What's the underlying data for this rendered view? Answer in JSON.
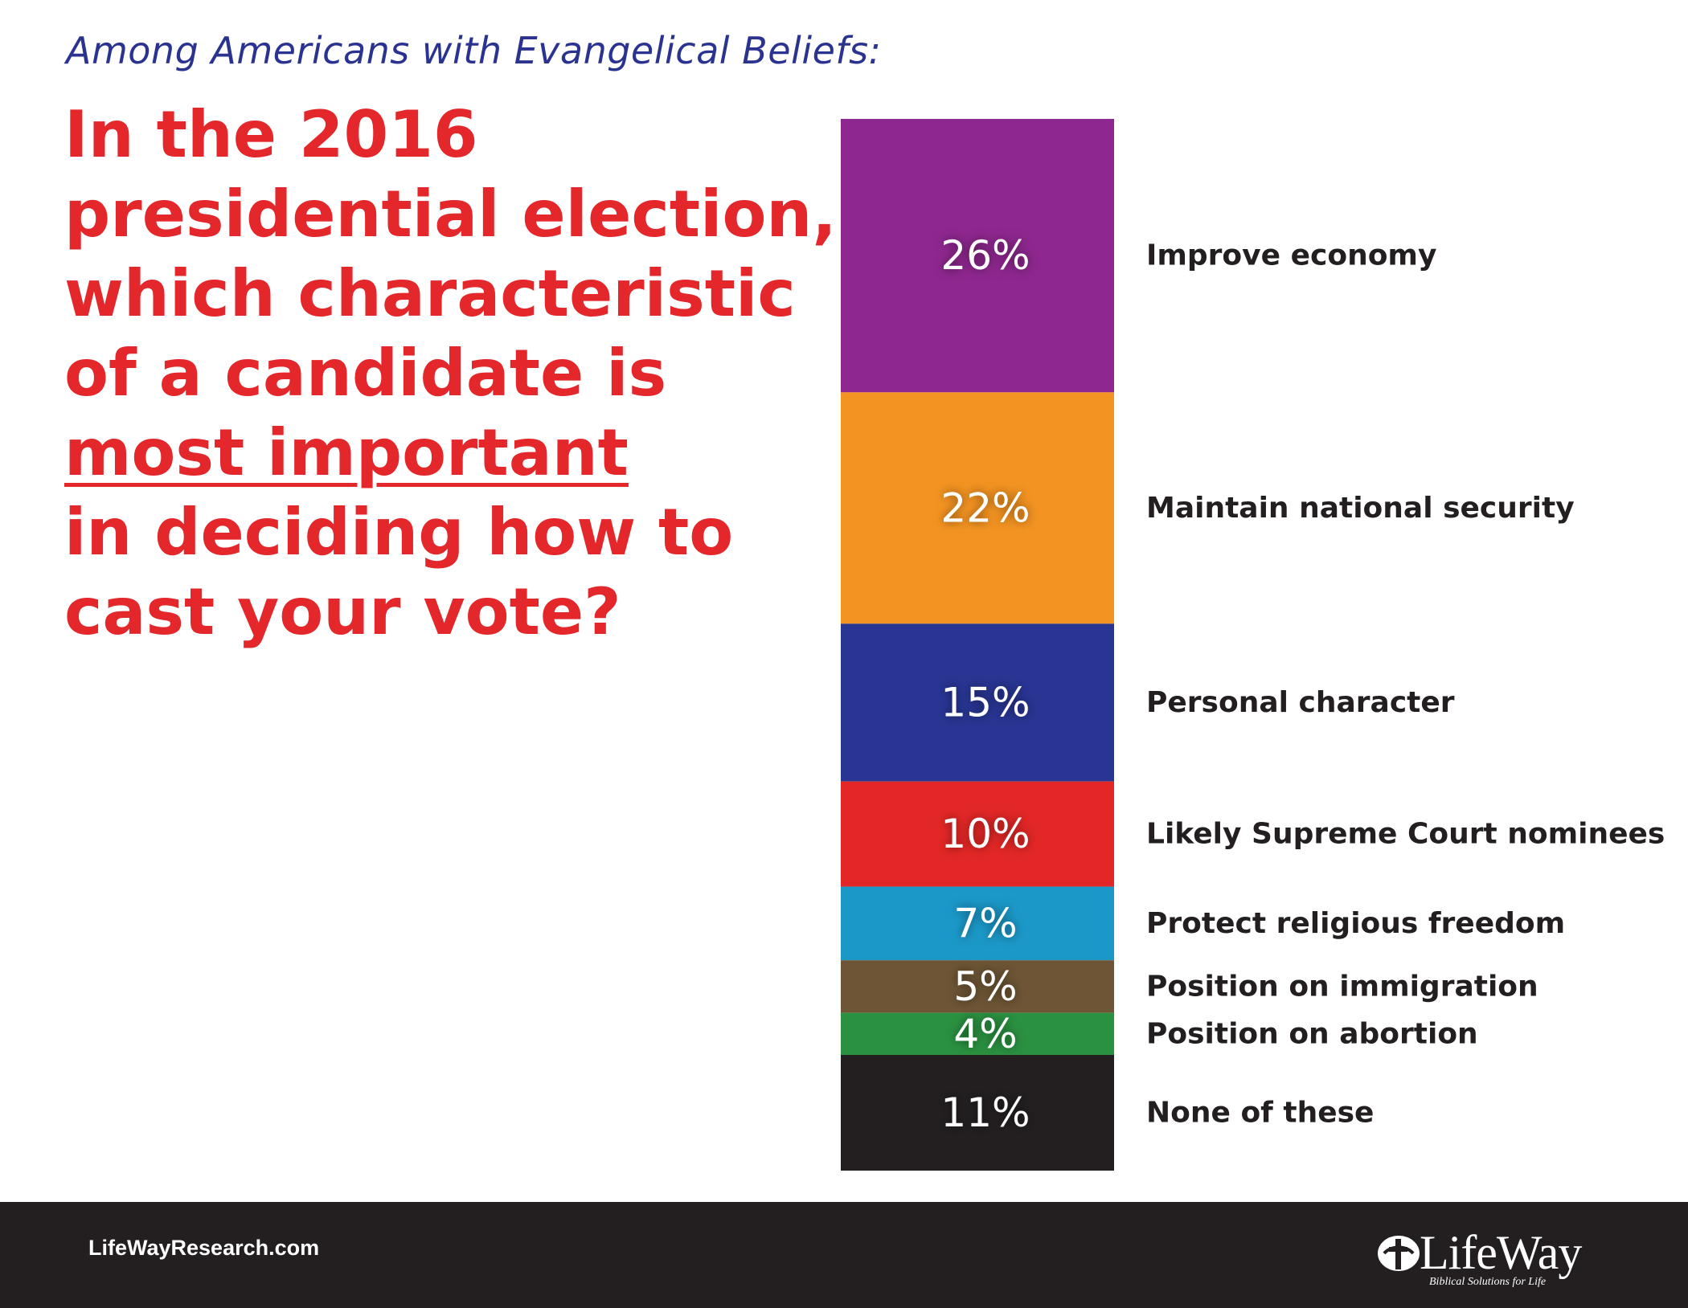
{
  "header": {
    "subtitle": "Among Americans with Evangelical Beliefs:",
    "question_lines": [
      "In the 2016",
      "presidential election,",
      "which characteristic",
      "of a candidate is",
      "most important",
      "in deciding how to",
      "cast your vote?"
    ]
  },
  "chart_data": {
    "type": "bar",
    "stacked": true,
    "orientation": "vertical-stack",
    "categories": [
      "Improve economy",
      "Maintain national security",
      "Personal character",
      "Likely Supreme Court nominees",
      "Protect religious freedom",
      "Position on immigration",
      "Position on abortion",
      "None of these"
    ],
    "values": [
      26,
      22,
      15,
      10,
      7,
      5,
      4,
      11
    ],
    "value_labels": [
      "26%",
      "22%",
      "15%",
      "10%",
      "7%",
      "5%",
      "4%",
      "11%"
    ],
    "colors": [
      "#8e278f",
      "#f39321",
      "#283593",
      "#e32726",
      "#1b98c8",
      "#6d5535",
      "#2a9140",
      "#231f20"
    ],
    "unit": "%",
    "legend_position": "right",
    "grid": false
  },
  "footer": {
    "url": "LifeWayResearch.com",
    "logo_text": "LifeWay",
    "logo_tagline": "Biblical Solutions for Life",
    "background": "#231f20"
  },
  "colors": {
    "subtitle": "#2a3390",
    "question": "#e3272b"
  }
}
